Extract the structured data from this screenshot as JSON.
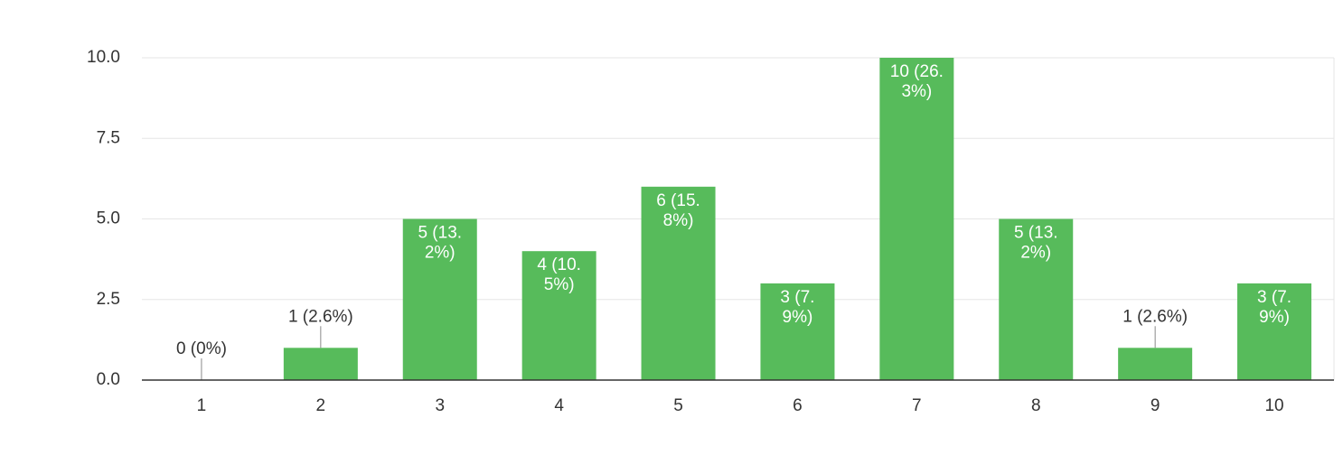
{
  "chart_data": {
    "type": "bar",
    "categories": [
      "1",
      "2",
      "3",
      "4",
      "5",
      "6",
      "7",
      "8",
      "9",
      "10"
    ],
    "values": [
      0,
      1,
      5,
      4,
      6,
      3,
      10,
      5,
      1,
      3
    ],
    "value_labels": [
      "0 (0%)",
      "1 (2.6%)",
      "5 (13.2%)",
      "4 (10.5%)",
      "6 (15.8%)",
      "3 (7.9%)",
      "10 (26.3%)",
      "5 (13.2%)",
      "1 (2.6%)",
      "3 (7.9%)"
    ],
    "color": "#57bb5b",
    "ylim": [
      0,
      10
    ],
    "yticks": [
      {
        "value": 0,
        "label": "0.0"
      },
      2.5,
      {
        "value": 5,
        "label": "5.0"
      },
      7.5,
      {
        "value": 10,
        "label": "10.0"
      }
    ],
    "grid": true
  }
}
